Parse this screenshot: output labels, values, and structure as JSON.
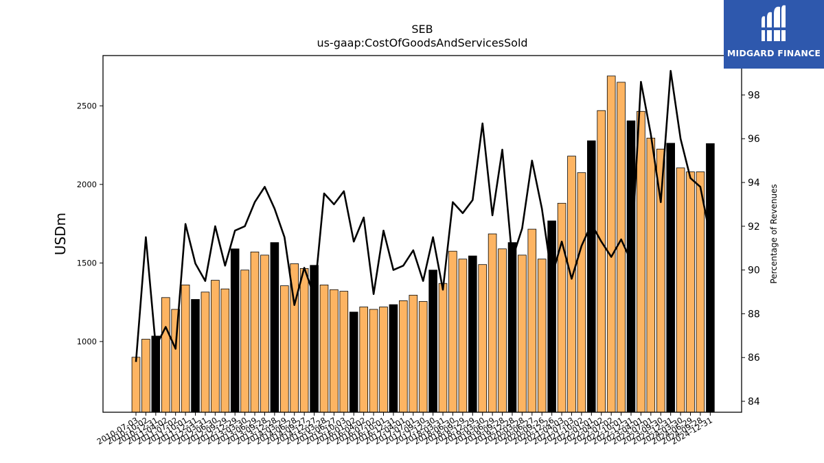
{
  "chart_data": {
    "type": "bar",
    "title": "SEB",
    "subtitle": "us-gaap:CostOfGoodsAndServicesSold",
    "ylabel": "USDm",
    "y2label": "Percentage of Revenues",
    "ylim": [
      550,
      2820
    ],
    "y2lim": [
      83.5,
      99.8
    ],
    "yticks": [
      1000,
      1500,
      2000,
      2500
    ],
    "y2ticks": [
      84,
      86,
      88,
      90,
      92,
      94,
      96,
      98
    ],
    "categories": [
      "2010-07-03",
      "2010-10-02",
      "2010-12-31",
      "2011-04-02",
      "2011-07-02",
      "2011-10-01",
      "2011-12-31",
      "2012-03-31",
      "2012-06-30",
      "2012-09-29",
      "2012-12-29",
      "2013-03-30",
      "2013-06-29",
      "2013-09-28",
      "2013-12-28",
      "2014-03-29",
      "2014-06-28",
      "2014-09-27",
      "2014-12-27",
      "2015-03-28",
      "2015-06-27",
      "2015-10-03",
      "2016-01-02",
      "2016-04-02",
      "2016-07-02",
      "2016-10-01",
      "2016-12-31",
      "2017-04-01",
      "2017-07-01",
      "2017-09-30",
      "2017-12-30",
      "2018-03-31",
      "2018-06-30",
      "2018-09-29",
      "2018-12-29",
      "2019-03-30",
      "2019-06-29",
      "2019-09-28",
      "2019-12-28",
      "2020-03-28",
      "2020-06-27",
      "2020-09-26",
      "2020-12-26",
      "2021-04-03",
      "2021-07-03",
      "2021-10-02",
      "2022-01-01",
      "2022-04-02",
      "2022-07-02",
      "2022-10-01",
      "2022-12-31",
      "2023-04-01",
      "2023-07-01",
      "2023-09-30",
      "2023-12-31",
      "2024-03-30",
      "2024-06-29",
      "2024-09-28",
      "2024-12-31"
    ],
    "series": [
      {
        "type": "bar",
        "values": [
          900,
          1015,
          1035,
          1280,
          1205,
          1360,
          1268,
          1315,
          1390,
          1335,
          1590,
          1455,
          1570,
          1550,
          1630,
          1355,
          1495,
          1465,
          1485,
          1360,
          1330,
          1320,
          1188,
          1220,
          1205,
          1220,
          1235,
          1260,
          1295,
          1255,
          1455,
          1370,
          1575,
          1525,
          1545,
          1490,
          1685,
          1590,
          1630,
          1550,
          1715,
          1525,
          1768,
          1880,
          2180,
          2075,
          2278,
          2470,
          2690,
          2650,
          2405,
          2465,
          2295,
          2225,
          2262,
          2105,
          2080,
          2080,
          2260
        ],
        "annual": [
          false,
          false,
          true,
          false,
          false,
          false,
          true,
          false,
          false,
          false,
          true,
          false,
          false,
          false,
          true,
          false,
          false,
          false,
          true,
          false,
          false,
          false,
          true,
          false,
          false,
          false,
          true,
          false,
          false,
          false,
          true,
          false,
          false,
          false,
          true,
          false,
          false,
          false,
          true,
          false,
          false,
          false,
          true,
          false,
          false,
          false,
          true,
          false,
          false,
          false,
          true,
          false,
          false,
          false,
          true,
          false,
          false,
          false,
          true
        ]
      },
      {
        "type": "line",
        "axis": "right",
        "values": [
          85.8,
          91.5,
          86.5,
          87.4,
          86.4,
          92.1,
          90.3,
          89.5,
          92.0,
          90.2,
          91.8,
          92.0,
          93.1,
          93.8,
          92.8,
          91.5,
          88.4,
          90.1,
          88.8,
          93.5,
          93.0,
          93.6,
          91.3,
          92.4,
          88.9,
          91.8,
          90.0,
          90.2,
          90.9,
          89.5,
          91.5,
          89.1,
          93.1,
          92.6,
          93.2,
          96.7,
          92.5,
          95.5,
          90.5,
          91.9,
          95.0,
          92.8,
          89.7,
          91.3,
          89.6,
          91.1,
          92.1,
          91.3,
          90.6,
          91.4,
          90.4,
          98.6,
          96.2,
          93.1,
          99.1,
          96.0,
          94.2,
          93.8,
          91.5
        ]
      }
    ],
    "colors": {
      "bar": "#fdb462",
      "bar_annual": "#000000",
      "line": "#000000"
    }
  },
  "logo": {
    "text": "MIDGARD FINANCE",
    "icon": "midgard-logo-icon",
    "bg": "#2e58ad"
  }
}
